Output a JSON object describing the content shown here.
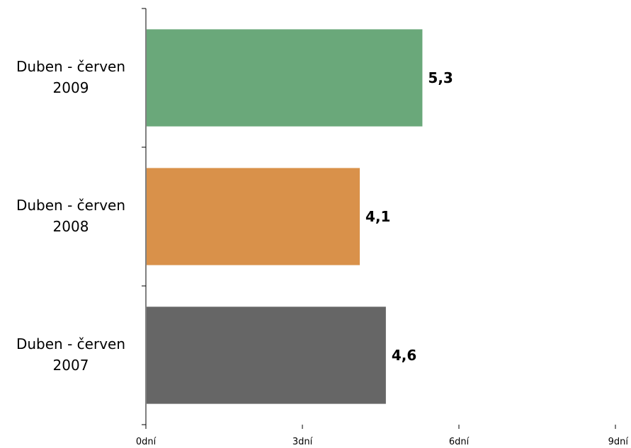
{
  "chart_data": {
    "type": "bar",
    "orientation": "horizontal",
    "categories": [
      [
        "Duben - červen",
        "2009"
      ],
      [
        "Duben - červen",
        "2008"
      ],
      [
        "Duben - červen",
        "2007"
      ]
    ],
    "values": [
      5.3,
      4.1,
      4.6
    ],
    "value_labels": [
      "5,3",
      "4,1",
      "4,6"
    ],
    "colors": [
      "#6aa87a",
      "#d9914a",
      "#666666"
    ],
    "xlim": [
      0,
      9
    ],
    "x_ticks": [
      0,
      3,
      6,
      9
    ],
    "x_tick_labels": [
      "0dní",
      "3dní",
      "6dní",
      "9dní"
    ],
    "grid": false,
    "legend": "none",
    "title": "",
    "xlabel": "",
    "ylabel": ""
  }
}
